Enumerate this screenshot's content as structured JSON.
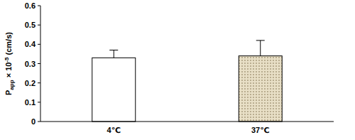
{
  "chart_data": {
    "type": "bar",
    "y_label": "Papp × 10-5 (cm/s)",
    "categories": [
      "4℃",
      "37℃"
    ],
    "values": [
      0.33,
      0.34
    ],
    "errors": [
      0.04,
      0.08
    ],
    "colors": [
      "#ffffff",
      "#e8dfc6"
    ],
    "ylim": [
      0,
      0.6
    ],
    "yticks": [
      0,
      0.1,
      0.2,
      0.3,
      0.4,
      0.5,
      0.6
    ],
    "grid": false
  }
}
